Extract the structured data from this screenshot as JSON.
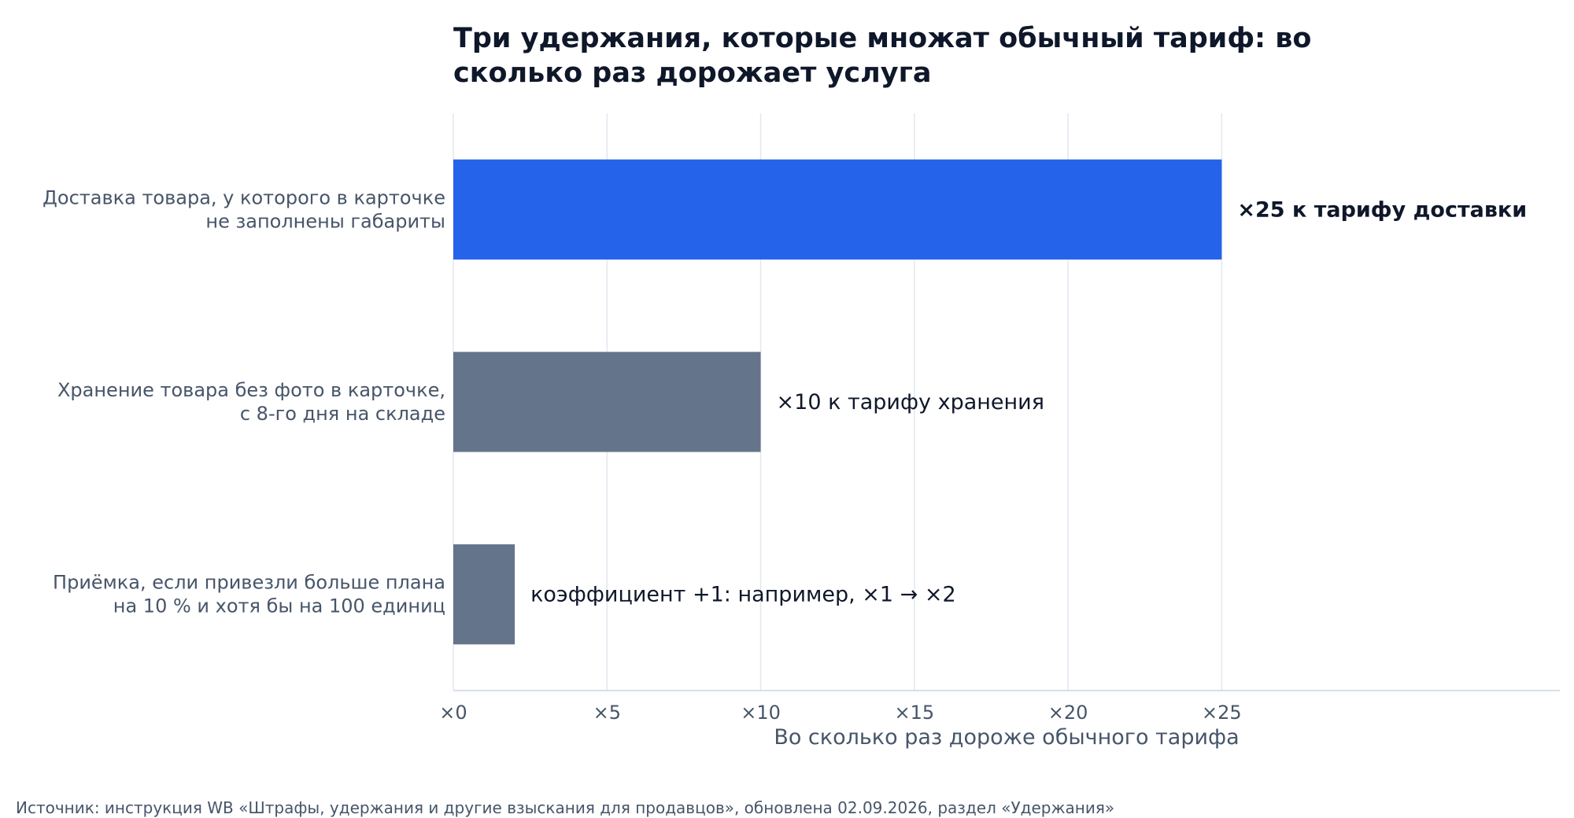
{
  "chart_data": {
    "type": "bar",
    "orientation": "horizontal",
    "title_lines": [
      "Три удержания, которые множат обычный тариф: во",
      "сколько раз дорожает услуга"
    ],
    "categories": [
      [
        "Доставка товара, у которого в карточке",
        "не заполнены габариты"
      ],
      [
        "Хранение товара без фото в карточке,",
        "с 8-го дня на складе"
      ],
      [
        "Приёмка, если привезли больше плана",
        "на 10 % и хотя бы на 100 единиц"
      ]
    ],
    "values": [
      25,
      10,
      2
    ],
    "data_labels": [
      "×25 к тарифу доставки",
      "×10 к тарифу хранения",
      "коэффициент +1: например, ×1 → ×2"
    ],
    "bar_colors": [
      "#2563eb",
      "#64748b",
      "#64748b"
    ],
    "xlabel": "Во сколько раз дороже обычного тарифа",
    "xticks": [
      0,
      5,
      10,
      15,
      20,
      25
    ],
    "xtick_labels": [
      "×0",
      "×5",
      "×10",
      "×15",
      "×20",
      "×25"
    ],
    "xlim": [
      0,
      36
    ],
    "grid": true,
    "gridline_color": "#e2e8f0",
    "axis_color": "#cbd5e1",
    "source": "Источник: инструкция WB «Штрафы, удержания и другие взыскания для продавцов», обновлена 02.09.2026, раздел «Удержания»"
  }
}
